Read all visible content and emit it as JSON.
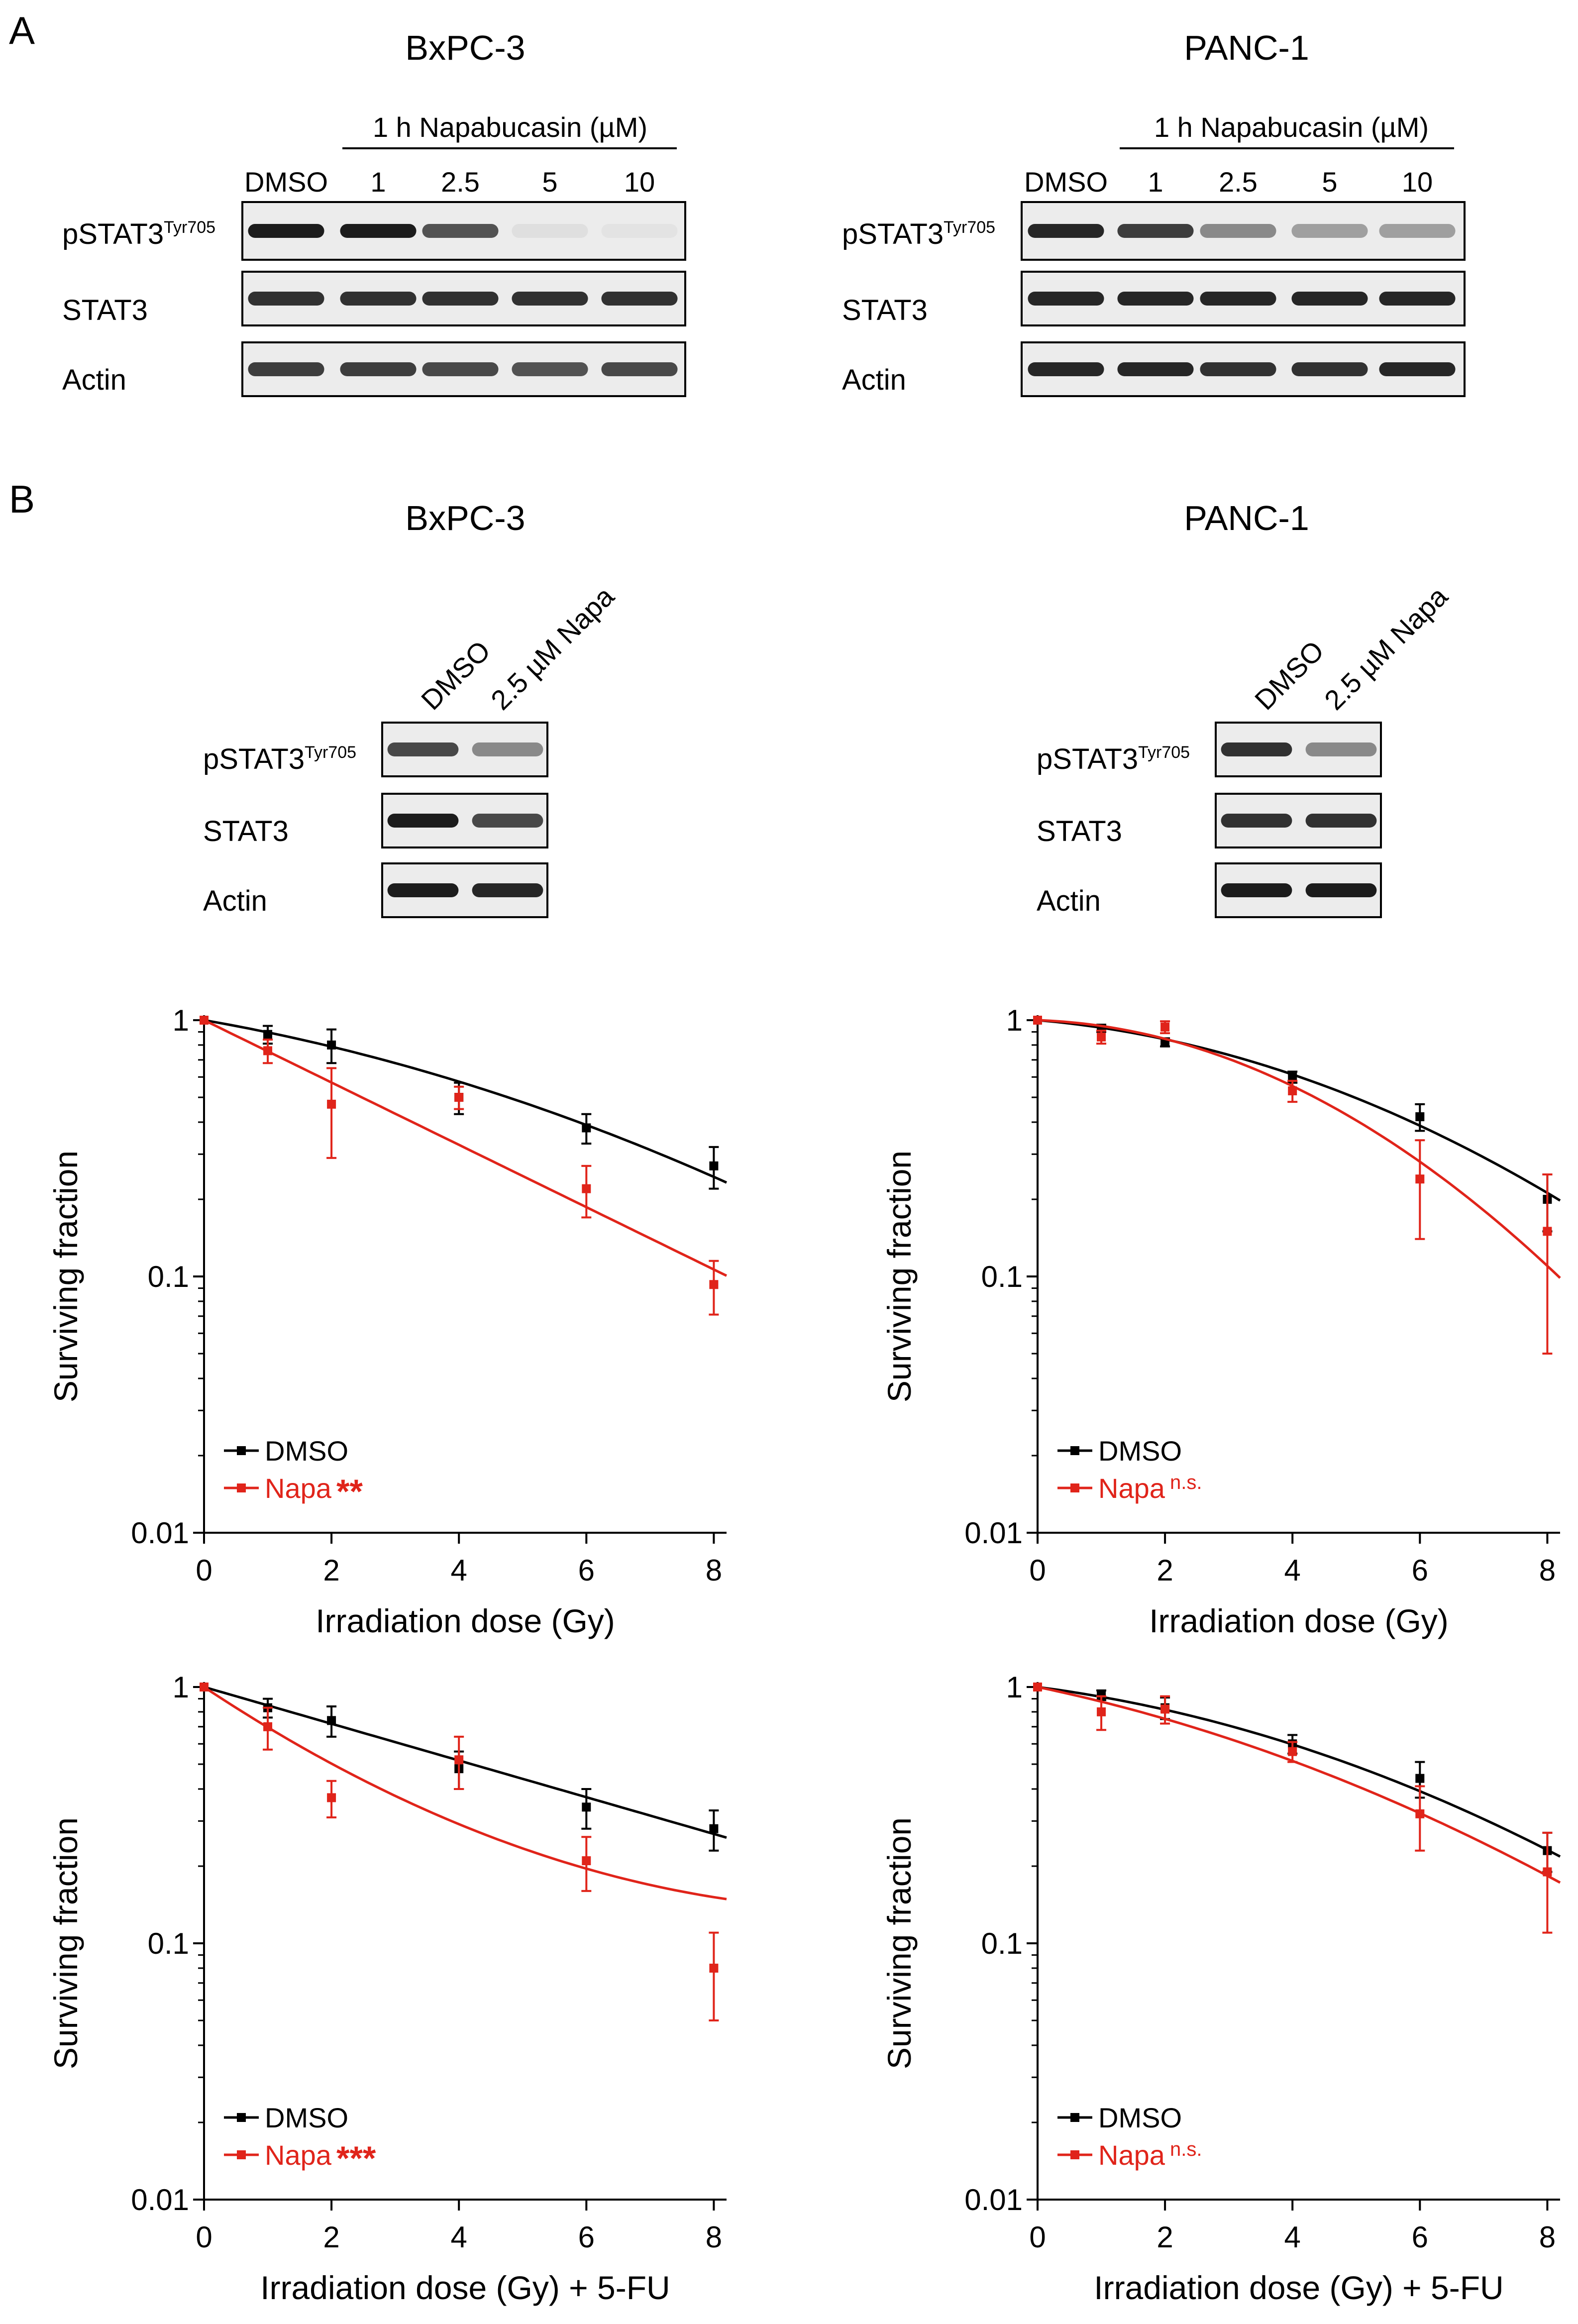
{
  "panel_labels": {
    "a": "A",
    "b": "B"
  },
  "colors": {
    "dmso": "#000000",
    "napa": "#e0241a",
    "blot_bg": "#ececec",
    "band": "#111111"
  },
  "panel_a": {
    "blots": [
      {
        "cell_line": "BxPC-3",
        "treatment_header": "1 h Napabucasin (µM)",
        "lanes": [
          "DMSO",
          "1",
          "2.5",
          "5",
          "10"
        ],
        "rows": [
          {
            "name": "pSTAT3",
            "superscript": "Tyr705",
            "band_intensity": [
              0.95,
              0.95,
              0.7,
              0.06,
              0.04
            ]
          },
          {
            "name": "STAT3",
            "superscript": "",
            "band_intensity": [
              0.85,
              0.85,
              0.85,
              0.85,
              0.85
            ]
          },
          {
            "name": "Actin",
            "superscript": "",
            "band_intensity": [
              0.8,
              0.8,
              0.75,
              0.7,
              0.75
            ]
          }
        ]
      },
      {
        "cell_line": "PANC-1",
        "treatment_header": "1 h Napabucasin (µM)",
        "lanes": [
          "DMSO",
          "1",
          "2.5",
          "5",
          "10"
        ],
        "rows": [
          {
            "name": "pSTAT3",
            "superscript": "Tyr705",
            "band_intensity": [
              0.9,
              0.8,
              0.45,
              0.35,
              0.35
            ]
          },
          {
            "name": "STAT3",
            "superscript": "",
            "band_intensity": [
              0.9,
              0.9,
              0.9,
              0.9,
              0.9
            ]
          },
          {
            "name": "Actin",
            "superscript": "",
            "band_intensity": [
              0.9,
              0.9,
              0.85,
              0.85,
              0.9
            ]
          }
        ]
      }
    ]
  },
  "panel_b": {
    "blots": [
      {
        "cell_line": "BxPC-3",
        "lanes": [
          "DMSO",
          "2.5 µM Napa"
        ],
        "rows": [
          {
            "name": "pSTAT3",
            "superscript": "Tyr705",
            "band_intensity": [
              0.75,
              0.45
            ]
          },
          {
            "name": "STAT3",
            "superscript": "",
            "band_intensity": [
              0.95,
              0.75
            ]
          },
          {
            "name": "Actin",
            "superscript": "",
            "band_intensity": [
              0.95,
              0.9
            ]
          }
        ]
      },
      {
        "cell_line": "PANC-1",
        "lanes": [
          "DMSO",
          "2.5 µM Napa"
        ],
        "rows": [
          {
            "name": "pSTAT3",
            "superscript": "Tyr705",
            "band_intensity": [
              0.85,
              0.45
            ]
          },
          {
            "name": "STAT3",
            "superscript": "",
            "band_intensity": [
              0.85,
              0.85
            ]
          },
          {
            "name": "Actin",
            "superscript": "",
            "band_intensity": [
              0.95,
              0.95
            ]
          }
        ]
      }
    ]
  },
  "chart_data": [
    {
      "type": "scatter",
      "cell_line": "BxPC-3",
      "xlabel": "Irradiation dose (Gy)",
      "ylabel": "Surviving fraction",
      "yscale": "log",
      "xlim": [
        0,
        8.2
      ],
      "ylim": [
        0.01,
        1
      ],
      "xticks": [
        "0",
        "2",
        "4",
        "6",
        "8"
      ],
      "yticks": [
        "0.01",
        "0.1",
        "1"
      ],
      "legend_position": "bottom-left",
      "series": [
        {
          "name": "DMSO",
          "significance": "",
          "x": [
            0,
            1,
            2,
            4,
            6,
            8
          ],
          "y": [
            1,
            0.88,
            0.8,
            0.5,
            0.38,
            0.27
          ],
          "err": [
            0,
            0.07,
            0.12,
            0.07,
            0.05,
            0.05
          ],
          "fit": {
            "alpha": 0.1,
            "beta": 0.0095
          }
        },
        {
          "name": "Napa",
          "significance": "**",
          "x": [
            0,
            1,
            2,
            4,
            6,
            8
          ],
          "y": [
            1,
            0.76,
            0.47,
            0.5,
            0.22,
            0.093
          ],
          "err": [
            0,
            0.08,
            0.18,
            0.05,
            0.05,
            0.022
          ],
          "fit": {
            "alpha": 0.28,
            "beta": 0.0
          }
        }
      ]
    },
    {
      "type": "scatter",
      "cell_line": "PANC-1",
      "xlabel": "Irradiation dose (Gy)",
      "ylabel": "Surviving fraction",
      "yscale": "log",
      "xlim": [
        0,
        8.2
      ],
      "ylim": [
        0.01,
        1
      ],
      "xticks": [
        "0",
        "2",
        "4",
        "6",
        "8"
      ],
      "yticks": [
        "0.01",
        "0.1",
        "1"
      ],
      "legend_position": "bottom-left",
      "series": [
        {
          "name": "DMSO",
          "significance": "",
          "x": [
            0,
            1,
            2,
            4,
            6,
            8
          ],
          "y": [
            1,
            0.93,
            0.82,
            0.6,
            0.42,
            0.2
          ],
          "err": [
            0,
            0.03,
            0.03,
            0.03,
            0.05,
            0.05
          ],
          "fit": {
            "alpha": 0.05,
            "beta": 0.018
          }
        },
        {
          "name": "Napa",
          "significance": "n.s.",
          "x": [
            0,
            1,
            2,
            4,
            6,
            8
          ],
          "y": [
            1,
            0.86,
            0.94,
            0.53,
            0.24,
            0.15
          ],
          "err": [
            0,
            0.05,
            0.05,
            0.05,
            0.1,
            0.1
          ],
          "fit": {
            "alpha": 0.02,
            "beta": 0.032
          }
        }
      ]
    },
    {
      "type": "scatter",
      "cell_line": "BxPC-3",
      "xlabel": "Irradiation dose (Gy) + 5-FU",
      "ylabel": "Surviving fraction",
      "yscale": "log",
      "xlim": [
        0,
        8.2
      ],
      "ylim": [
        0.01,
        1
      ],
      "xticks": [
        "0",
        "2",
        "4",
        "6",
        "8"
      ],
      "yticks": [
        "0.01",
        "0.1",
        "1"
      ],
      "legend_position": "bottom-left",
      "series": [
        {
          "name": "DMSO",
          "significance": "",
          "x": [
            0,
            1,
            2,
            4,
            6,
            8
          ],
          "y": [
            1,
            0.83,
            0.74,
            0.48,
            0.34,
            0.28
          ],
          "err": [
            0,
            0.07,
            0.1,
            0.08,
            0.06,
            0.05
          ],
          "fit": {
            "alpha": 0.165,
            "beta": 0.0
          }
        },
        {
          "name": "Napa",
          "significance": "***",
          "x": [
            0,
            1,
            2,
            4,
            6,
            8
          ],
          "y": [
            1,
            0.7,
            0.37,
            0.52,
            0.21,
            0.08
          ],
          "err": [
            0,
            0.13,
            0.06,
            0.12,
            0.05,
            0.03
          ],
          "fit": {
            "alpha": 0.38,
            "beta": -0.018
          }
        }
      ]
    },
    {
      "type": "scatter",
      "cell_line": "PANC-1",
      "xlabel": "Irradiation dose (Gy) + 5-FU",
      "ylabel": "Surviving fraction",
      "yscale": "log",
      "xlim": [
        0,
        8.2
      ],
      "ylim": [
        0.01,
        1
      ],
      "xticks": [
        "0",
        "2",
        "4",
        "6",
        "8"
      ],
      "yticks": [
        "0.01",
        "0.1",
        "1"
      ],
      "legend_position": "bottom-left",
      "series": [
        {
          "name": "DMSO",
          "significance": "",
          "x": [
            0,
            1,
            2,
            4,
            6,
            8
          ],
          "y": [
            1,
            0.93,
            0.83,
            0.6,
            0.44,
            0.23
          ],
          "err": [
            0,
            0.04,
            0.08,
            0.05,
            0.07,
            0.04
          ],
          "fit": {
            "alpha": 0.075,
            "beta": 0.0135
          }
        },
        {
          "name": "Napa",
          "significance": "n.s.",
          "x": [
            0,
            1,
            2,
            4,
            6,
            8
          ],
          "y": [
            1,
            0.8,
            0.82,
            0.56,
            0.32,
            0.19
          ],
          "err": [
            0,
            0.12,
            0.1,
            0.05,
            0.09,
            0.08
          ],
          "fit": {
            "alpha": 0.12,
            "beta": 0.0115
          }
        }
      ]
    }
  ]
}
